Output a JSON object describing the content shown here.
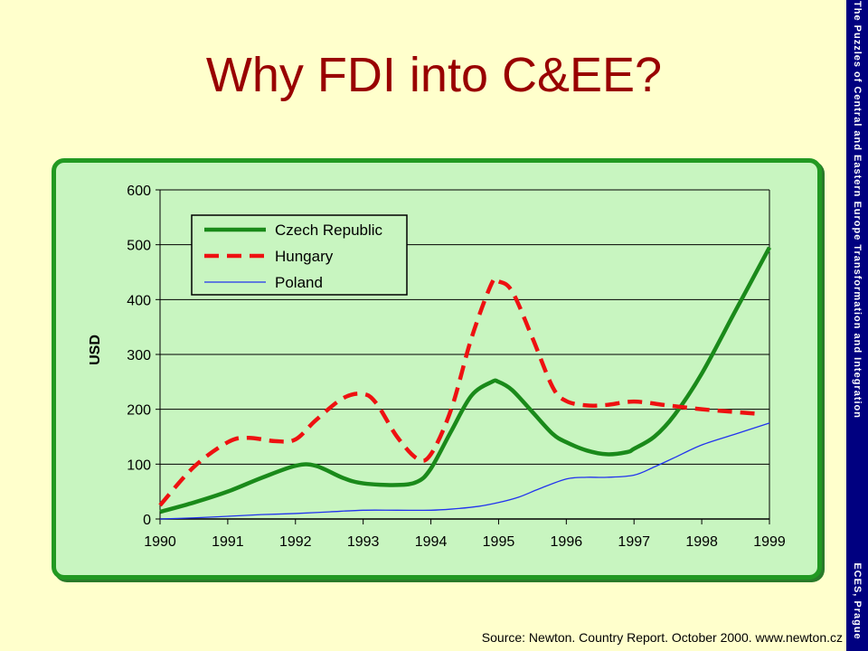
{
  "slide": {
    "title": "Why FDI into C&EE?",
    "source": "Source: Newton. Country Report. October 2000. www.newton.cz",
    "side_text_top": "The Puzzles of Central and Eastern Europe Transformation and Integration",
    "side_text_bottom": "ECES, Prague"
  },
  "colors": {
    "title": "#990000",
    "side_bar": "#000080",
    "background": "#ffffcc",
    "chart_frame": "#229922",
    "chart_bg": "#c8f5c0"
  },
  "chart_data": {
    "type": "line",
    "ylabel": "USD",
    "xlabel": "",
    "ylim": [
      0,
      600
    ],
    "yticks": [
      0,
      100,
      200,
      300,
      400,
      500,
      600
    ],
    "xlim": [
      1990,
      1999
    ],
    "xticks": [
      "1990",
      "1991",
      "1992",
      "1993",
      "1994",
      "1995",
      "1996",
      "1997",
      "1998",
      "1999"
    ],
    "grid": "horizontal",
    "legend_position": "top-left",
    "series": [
      {
        "name": "Czech Republic",
        "color": "#1a8a1a",
        "style": "solid-thick",
        "x": [
          1990,
          1990.5,
          1991,
          1991.5,
          1992,
          1992.3,
          1992.7,
          1993,
          1993.5,
          1993.8,
          1994,
          1994.3,
          1994.6,
          1994.9,
          1995,
          1995.2,
          1995.5,
          1995.8,
          1996,
          1996.3,
          1996.6,
          1996.9,
          1997,
          1997.3,
          1997.6,
          1998,
          1998.5,
          1999
        ],
        "y": [
          13,
          30,
          50,
          75,
          97,
          97,
          75,
          65,
          62,
          68,
          92,
          160,
          225,
          250,
          250,
          235,
          195,
          155,
          140,
          125,
          118,
          122,
          128,
          150,
          190,
          265,
          380,
          495
        ]
      },
      {
        "name": "Hungary",
        "color": "#ee1111",
        "style": "dashed",
        "x": [
          1990,
          1990.5,
          1991,
          1991.3,
          1991.7,
          1992,
          1992.3,
          1992.7,
          1993,
          1993.2,
          1993.5,
          1993.8,
          1994,
          1994.3,
          1994.6,
          1994.9,
          1995,
          1995.2,
          1995.5,
          1995.8,
          1996,
          1996.3,
          1996.6,
          1997,
          1997.5,
          1998,
          1998.5,
          1998.8
        ],
        "y": [
          25,
          95,
          140,
          148,
          142,
          145,
          180,
          220,
          228,
          210,
          150,
          110,
          118,
          200,
          330,
          430,
          433,
          415,
          330,
          240,
          215,
          207,
          208,
          214,
          207,
          200,
          195,
          192
        ]
      },
      {
        "name": "Poland",
        "color": "#2233ee",
        "style": "solid-thin",
        "x": [
          1990,
          1990.5,
          1991,
          1991.5,
          1992,
          1992.5,
          1993,
          1993.5,
          1994,
          1994.3,
          1994.7,
          1995,
          1995.3,
          1995.6,
          1996,
          1996.3,
          1996.6,
          1997,
          1997.3,
          1997.6,
          1998,
          1998.5,
          1999
        ],
        "y": [
          0,
          2,
          5,
          8,
          10,
          13,
          16,
          16,
          16,
          18,
          23,
          30,
          40,
          55,
          73,
          76,
          76,
          80,
          95,
          112,
          135,
          155,
          175
        ]
      }
    ]
  }
}
